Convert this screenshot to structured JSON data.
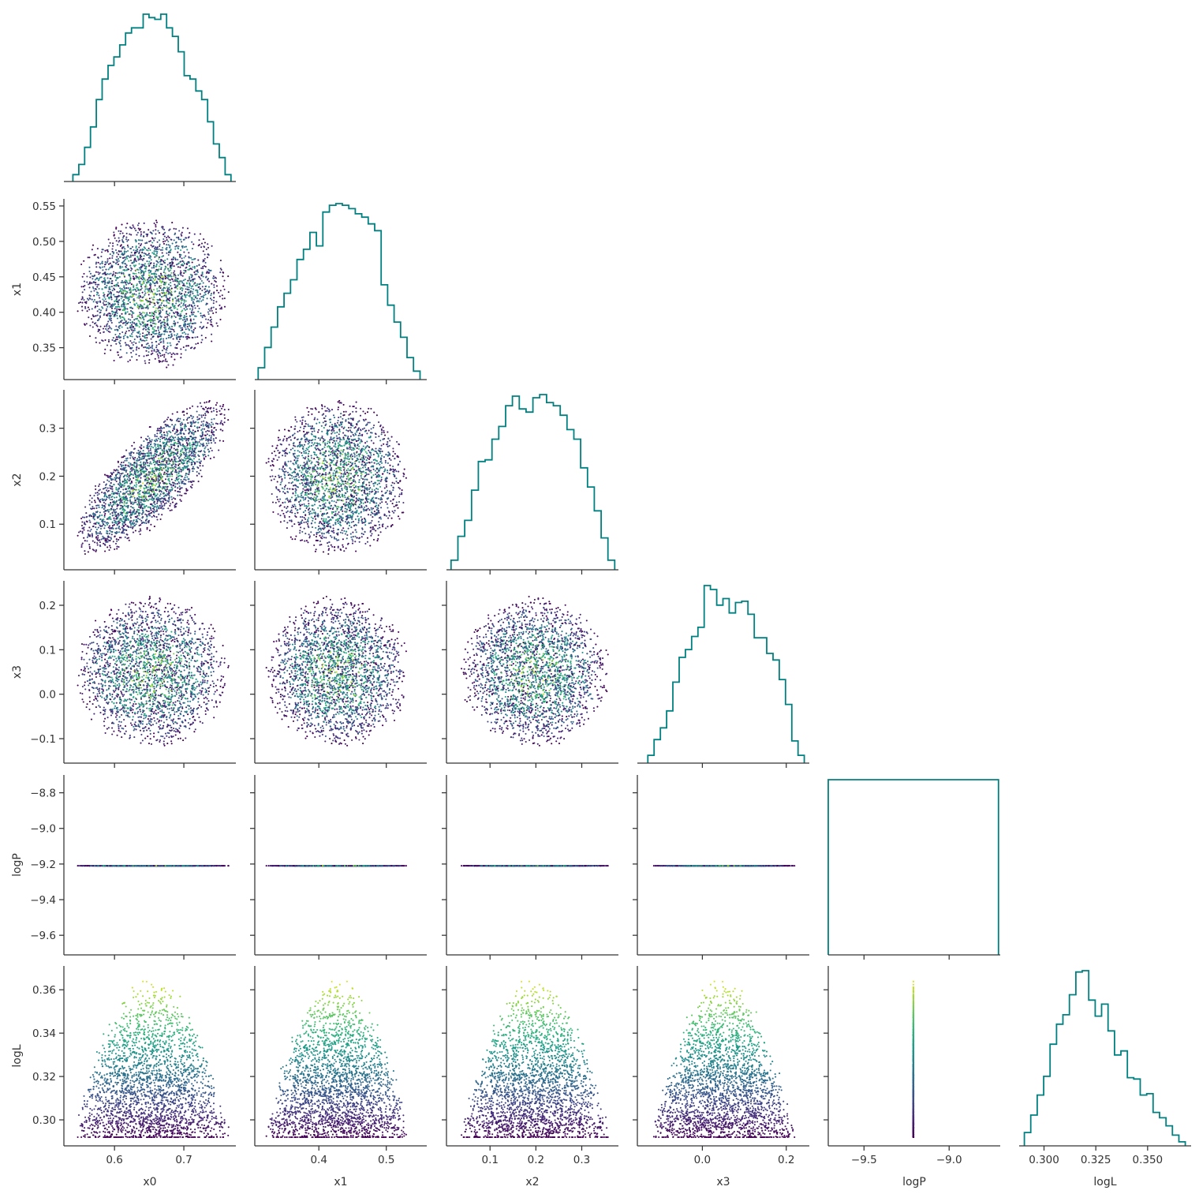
{
  "chart_data": {
    "type": "corner",
    "title": "",
    "parameters": [
      "x0",
      "x1",
      "x2",
      "x3",
      "logP",
      "logL"
    ],
    "hist_color": "#008080",
    "scatter_colormap": "viridis",
    "scatter_color_by": "logL",
    "grid": false,
    "axes": {
      "x0": {
        "range": [
          0.527,
          0.775
        ],
        "ticks": [
          0.6,
          0.7
        ],
        "tick_labels": [
          "0.6",
          "0.7"
        ]
      },
      "x1": {
        "range": [
          0.305,
          0.56
        ],
        "ticks": [
          0.35,
          0.4,
          0.45,
          0.5,
          0.55
        ],
        "tick_labels": [
          "0.35",
          "0.40",
          "0.45",
          "0.50",
          "0.55"
        ],
        "x_ticks": [
          0.4,
          0.5
        ],
        "x_tick_labels": [
          "0.4",
          "0.5"
        ]
      },
      "x2": {
        "range": [
          0.005,
          0.38
        ],
        "ticks": [
          0.1,
          0.2,
          0.3
        ],
        "tick_labels": [
          "0.1",
          "0.2",
          "0.3"
        ]
      },
      "x3": {
        "range": [
          -0.155,
          0.255
        ],
        "ticks": [
          -0.1,
          0.0,
          0.1,
          0.2
        ],
        "tick_labels": [
          "−0.1",
          "0.0",
          "0.1",
          "0.2"
        ],
        "x_ticks": [
          0.0,
          0.2
        ],
        "x_tick_labels": [
          "0.0",
          "0.2"
        ]
      },
      "logP": {
        "range": [
          -9.71,
          -8.7
        ],
        "ticks": [
          -9.6,
          -9.4,
          -9.2,
          -9.0,
          -8.8
        ],
        "tick_labels": [
          "−9.6",
          "−9.4",
          "−9.2",
          "−9.0",
          "−8.8"
        ],
        "x_ticks": [
          -9.5,
          -9.0
        ],
        "x_tick_labels": [
          "−9.5",
          "−9.0"
        ]
      },
      "logL": {
        "range": [
          0.288,
          0.371
        ],
        "ticks": [
          0.3,
          0.32,
          0.34,
          0.36
        ],
        "tick_labels": [
          "0.30",
          "0.32",
          "0.34",
          "0.36"
        ],
        "x_ticks": [
          0.3,
          0.325,
          0.35
        ],
        "x_tick_labels": [
          "0.300",
          "0.325",
          "0.350"
        ]
      }
    },
    "marginals": {
      "x0": {
        "range": [
          0.54,
          0.768
        ],
        "counts": [
          4,
          10,
          20,
          32,
          48,
          60,
          68,
          73,
          80,
          87,
          90,
          90,
          98,
          96,
          95,
          98,
          90,
          85,
          76,
          62,
          60,
          53,
          48,
          35,
          22,
          14,
          4
        ]
      },
      "x1": {
        "range": [
          0.31,
          0.55
        ],
        "counts": [
          7,
          19,
          31,
          43,
          51,
          59,
          71,
          77,
          87,
          79,
          99,
          103,
          104,
          103,
          101,
          98,
          96,
          92,
          88,
          56,
          44,
          34,
          25,
          13,
          5
        ]
      },
      "x2": {
        "range": [
          0.015,
          0.372
        ],
        "counts": [
          6,
          21,
          31,
          50,
          68,
          69,
          82,
          90,
          103,
          109,
          101,
          99,
          108,
          110,
          105,
          103,
          97,
          88,
          82,
          64,
          52,
          37,
          20,
          6
        ]
      },
      "x3": {
        "range": [
          -0.13,
          0.243
        ],
        "counts": [
          6,
          18,
          27,
          40,
          62,
          81,
          87,
          97,
          104,
          136,
          133,
          121,
          126,
          115,
          123,
          124,
          114,
          96,
          96,
          84,
          79,
          64,
          45,
          17,
          6
        ]
      },
      "logP": {
        "range": [
          -9.71,
          -8.71
        ],
        "counts": [
          1
        ]
      },
      "logL": {
        "range": [
          0.2905,
          0.3682
        ],
        "counts": [
          10,
          23,
          38,
          52,
          76,
          91,
          98,
          113,
          130,
          131,
          109,
          97,
          106,
          86,
          68,
          71,
          51,
          50,
          38,
          39,
          25,
          21,
          15,
          8,
          3
        ]
      }
    },
    "relations": {
      "x1": {
        "center": 0.428,
        "spread": 0.055
      },
      "x2": {
        "center": 0.198,
        "spread": 0.075,
        "corr_with_x0": 0.75
      },
      "x3": {
        "center": 0.05,
        "spread": 0.075
      },
      "logP": {
        "constant": -9.21
      },
      "logL": {
        "max": 0.3675,
        "min": 0.292
      }
    },
    "n_points": 2400
  }
}
